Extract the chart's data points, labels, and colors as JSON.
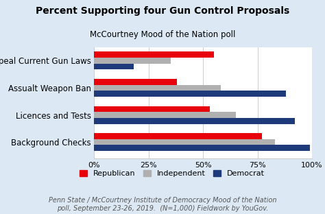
{
  "title": "Percent Supporting four Gun Control Proposals",
  "subtitle": "McCourtney Mood of the Nation poll",
  "categories": [
    "Repeal Current Gun Laws",
    "Assualt Weapon Ban",
    "Licences and Tests",
    "Background Checks"
  ],
  "republican": [
    55,
    38,
    53,
    77
  ],
  "independent": [
    35,
    58,
    65,
    83
  ],
  "democrat": [
    18,
    88,
    92,
    99
  ],
  "colors": {
    "republican": "#e8000b",
    "independent": "#b0b0b0",
    "democrat": "#1f3a7a"
  },
  "xlim": [
    0,
    100
  ],
  "xticks": [
    0,
    25,
    50,
    75,
    100
  ],
  "xticklabels": [
    "0%",
    "25%",
    "50%",
    "75%",
    "100%"
  ],
  "footnote": "Penn State / McCourtney Institute of Democracy Mood of the Nation\npoll, September 23-26, 2019.  (N=1,000) Fieldwork by YouGov.",
  "background_color": "#dce9f5",
  "plot_bg_color": "#ffffff",
  "title_fontsize": 10,
  "subtitle_fontsize": 8.5,
  "footnote_fontsize": 7.0,
  "ylabel_fontsize": 8.5,
  "xlabel_fontsize": 8.0
}
